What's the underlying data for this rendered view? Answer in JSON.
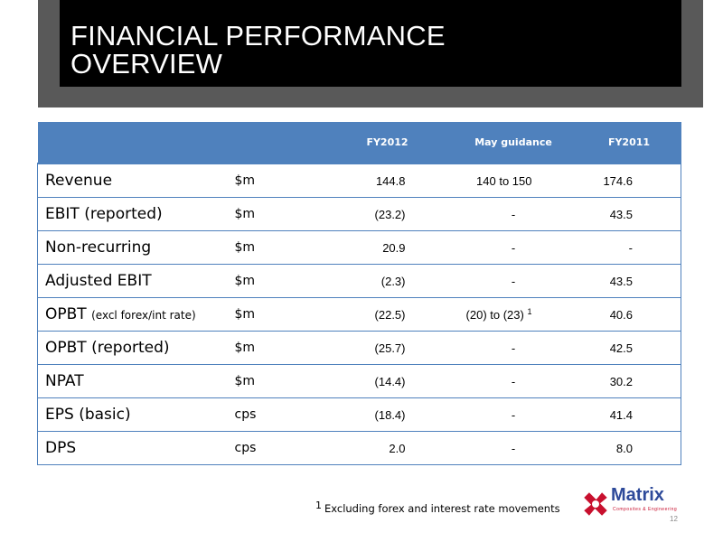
{
  "header": {
    "title_line1": "FINANCIAL PERFORMANCE",
    "title_line2": "OVERVIEW"
  },
  "table": {
    "columns": [
      "",
      "",
      "FY2012",
      "May guidance",
      "FY2011"
    ],
    "rows": [
      {
        "label": "Revenue",
        "label_suffix": "",
        "unit": "$m",
        "fy2012": "144.8",
        "guidance": "140 to 150",
        "guidance_note": "",
        "fy2011": "174.6"
      },
      {
        "label": "EBIT (reported)",
        "label_suffix": "",
        "unit": "$m",
        "fy2012": "(23.2)",
        "guidance": "-",
        "guidance_note": "",
        "fy2011": "43.5"
      },
      {
        "label": "Non-recurring",
        "label_suffix": "",
        "unit": "$m",
        "fy2012": "20.9",
        "guidance": "-",
        "guidance_note": "",
        "fy2011": "-"
      },
      {
        "label": "Adjusted EBIT",
        "label_suffix": "",
        "unit": "$m",
        "fy2012": "(2.3)",
        "guidance": "-",
        "guidance_note": "",
        "fy2011": "43.5"
      },
      {
        "label": "OPBT",
        "label_suffix": "(excl forex/int rate)",
        "unit": "$m",
        "fy2012": "(22.5)",
        "guidance": "(20) to (23)",
        "guidance_note": "1",
        "fy2011": "40.6"
      },
      {
        "label": "OPBT (reported)",
        "label_suffix": "",
        "unit": "$m",
        "fy2012": "(25.7)",
        "guidance": "-",
        "guidance_note": "",
        "fy2011": "42.5"
      },
      {
        "label": "NPAT",
        "label_suffix": "",
        "unit": "$m",
        "fy2012": "(14.4)",
        "guidance": "-",
        "guidance_note": "",
        "fy2011": "30.2"
      },
      {
        "label": "EPS (basic)",
        "label_suffix": "",
        "unit": "cps",
        "fy2012": "(18.4)",
        "guidance": "-",
        "guidance_note": "",
        "fy2011": "41.4"
      },
      {
        "label": "DPS",
        "label_suffix": "",
        "unit": "cps",
        "fy2012": "2.0",
        "guidance": "-",
        "guidance_note": "",
        "fy2011": "8.0"
      }
    ]
  },
  "footnote": {
    "marker": "1",
    "text": "Excluding forex and interest rate movements"
  },
  "logo": {
    "name": "Matrix",
    "tagline": "Composites & Engineering",
    "icon": "matrix-cross-logo-icon"
  },
  "page_number": "12",
  "colors": {
    "header_band": "#595959",
    "header_box": "#000000",
    "table_header": "#4f81bd",
    "table_border": "#4f81bd",
    "logo_blue": "#2e4a9a",
    "logo_red": "#c8102e"
  }
}
